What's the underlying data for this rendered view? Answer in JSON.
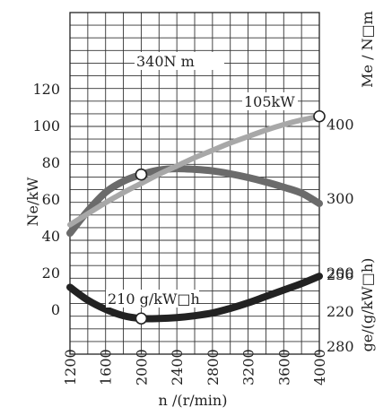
{
  "chart_data": {
    "type": "line",
    "x_ticks": [
      "1200",
      "1600",
      "2000",
      "2400",
      "2800",
      "3200",
      "3600",
      "4000"
    ],
    "xlabel": "n /(r/min)",
    "xlim": [
      1200,
      4000
    ],
    "left_axis": {
      "label": "Ne/kW",
      "ticks": [
        "0",
        "20",
        "40",
        "60",
        "80",
        "100",
        "120"
      ]
    },
    "right_upper_axis": {
      "label": "Me / N□m",
      "ticks": [
        "200",
        "300",
        "400"
      ]
    },
    "right_lower_axis": {
      "label": "ge/(g/kW□h)",
      "ticks": [
        "256",
        "220",
        "280"
      ]
    },
    "series": [
      {
        "key": "torque",
        "axis": "right_upper_axis",
        "color": "#6b6b6b",
        "x": [
          1200,
          1400,
          1600,
          1800,
          2000,
          2200,
          2400,
          2600,
          2800,
          3000,
          3200,
          3400,
          3600,
          3800,
          4000
        ],
        "y": [
          253,
          283,
          308,
          323,
          332,
          338,
          340,
          339,
          337,
          333,
          328,
          322,
          315,
          307,
          293
        ]
      },
      {
        "key": "power",
        "axis": "left_axis",
        "color": "#a8a8a8",
        "x": [
          1200,
          1400,
          1600,
          1800,
          2000,
          2200,
          2400,
          2600,
          2800,
          3000,
          3200,
          3400,
          3600,
          3800,
          4000
        ],
        "y": [
          46,
          52,
          58,
          63.5,
          68.5,
          73.5,
          78,
          82.5,
          86.5,
          90.5,
          94,
          97.5,
          100.5,
          103,
          105
        ]
      },
      {
        "key": "fuel",
        "axis": "right_lower_axis",
        "color": "#222222",
        "x": [
          1200,
          1400,
          1600,
          1800,
          2000,
          2200,
          2400,
          2600,
          2800,
          3000,
          3200,
          3400,
          3600,
          3800,
          4000
        ],
        "y": [
          12,
          5,
          0,
          -3.5,
          -5,
          -5,
          -4.5,
          -3.5,
          -2,
          0.5,
          3.5,
          7,
          10.5,
          14,
          18
        ]
      }
    ],
    "markers": [
      {
        "series": "torque",
        "x": 2000,
        "y": 332
      },
      {
        "series": "power",
        "x": 4000,
        "y": 105
      },
      {
        "series": "fuel",
        "x": 2000,
        "y": -5
      }
    ],
    "annotations": {
      "torque_max": "340N m",
      "power_max": "105kW",
      "fuel_min": "210 g/kW□h"
    },
    "grid": true
  }
}
